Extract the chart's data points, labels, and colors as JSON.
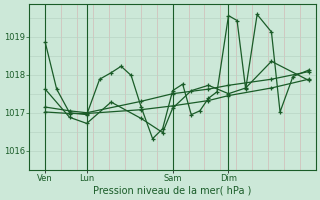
{
  "background_color": "#cce8d8",
  "plot_bg_color": "#cce8d8",
  "grid_color_v": "#b8d4c4",
  "grid_color_h": "#c8a0a0",
  "line_color": "#1a5c28",
  "title": "Pression niveau de la mer( hPa )",
  "ylim": [
    1015.5,
    1019.85
  ],
  "yticks": [
    1016,
    1017,
    1018,
    1019
  ],
  "xtick_labels": [
    "Ven",
    "Lun",
    "Sam",
    "Dim"
  ],
  "xtick_positions": [
    0.055,
    0.2,
    0.5,
    0.695
  ],
  "vline_positions": [
    0.055,
    0.2,
    0.5,
    0.695
  ],
  "series1": [
    [
      0.055,
      1018.85
    ],
    [
      0.095,
      1017.62
    ],
    [
      0.14,
      1017.0
    ],
    [
      0.2,
      1016.95
    ],
    [
      0.245,
      1017.88
    ],
    [
      0.285,
      1018.05
    ],
    [
      0.32,
      1018.22
    ],
    [
      0.355,
      1017.98
    ],
    [
      0.39,
      1017.15
    ],
    [
      0.43,
      1016.32
    ],
    [
      0.465,
      1016.58
    ],
    [
      0.5,
      1017.58
    ],
    [
      0.535,
      1017.75
    ],
    [
      0.565,
      1016.95
    ],
    [
      0.595,
      1017.05
    ],
    [
      0.625,
      1017.38
    ],
    [
      0.655,
      1017.55
    ],
    [
      0.695,
      1019.55
    ],
    [
      0.725,
      1019.42
    ],
    [
      0.755,
      1017.62
    ],
    [
      0.795,
      1019.58
    ],
    [
      0.845,
      1019.12
    ],
    [
      0.875,
      1017.02
    ],
    [
      0.92,
      1017.95
    ],
    [
      0.975,
      1018.12
    ]
  ],
  "series2": [
    [
      0.055,
      1017.62
    ],
    [
      0.14,
      1016.88
    ],
    [
      0.2,
      1016.72
    ],
    [
      0.285,
      1017.28
    ],
    [
      0.39,
      1016.85
    ],
    [
      0.465,
      1016.48
    ],
    [
      0.5,
      1017.12
    ],
    [
      0.565,
      1017.58
    ],
    [
      0.625,
      1017.72
    ],
    [
      0.695,
      1017.5
    ],
    [
      0.755,
      1017.65
    ],
    [
      0.845,
      1018.35
    ],
    [
      0.975,
      1017.85
    ]
  ],
  "series3": [
    [
      0.055,
      1017.15
    ],
    [
      0.14,
      1017.05
    ],
    [
      0.2,
      1017.0
    ],
    [
      0.39,
      1017.3
    ],
    [
      0.5,
      1017.5
    ],
    [
      0.625,
      1017.62
    ],
    [
      0.695,
      1017.72
    ],
    [
      0.845,
      1017.88
    ],
    [
      0.975,
      1018.08
    ]
  ],
  "series4": [
    [
      0.055,
      1017.02
    ],
    [
      0.14,
      1016.98
    ],
    [
      0.2,
      1016.98
    ],
    [
      0.39,
      1017.08
    ],
    [
      0.5,
      1017.18
    ],
    [
      0.625,
      1017.32
    ],
    [
      0.695,
      1017.45
    ],
    [
      0.845,
      1017.65
    ],
    [
      0.975,
      1017.88
    ]
  ]
}
